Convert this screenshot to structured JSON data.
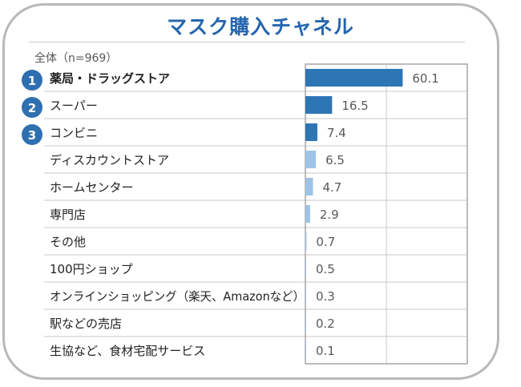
{
  "chart_data": {
    "type": "bar",
    "orientation": "horizontal",
    "title": "マスク購入チャネル",
    "subtitle": "全体（n=969）",
    "categories": [
      "薬局・ドラッグストア",
      "スーパー",
      "コンビニ",
      "ディスカウントストア",
      "ホームセンター",
      "専門店",
      "その他",
      "100円ショップ",
      "オンラインショッピング（楽天、Amazonなど）",
      "駅などの売店",
      "生協など、食材宅配サービス"
    ],
    "values": [
      60.1,
      16.5,
      7.4,
      6.5,
      4.7,
      2.9,
      0.7,
      0.5,
      0.3,
      0.2,
      0.1
    ],
    "data_labels": [
      "60.1",
      "16.5",
      "7.4",
      "6.5",
      "4.7",
      "2.9",
      "0.7",
      "0.5",
      "0.3",
      "0.2",
      "0.1"
    ],
    "ranks": [
      "1",
      "2",
      "3"
    ],
    "xlim": [
      0,
      100
    ],
    "grid": true,
    "colors": {
      "top3": "#2e75b6",
      "others": "#9dc3e6",
      "badge": "#2e6fb0",
      "title": "#2566ad"
    }
  }
}
